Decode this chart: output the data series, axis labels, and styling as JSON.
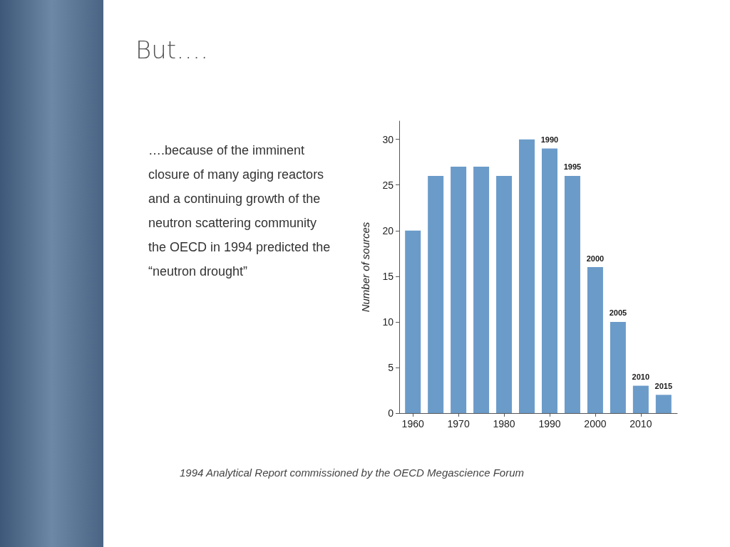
{
  "chart_data": {
    "type": "bar",
    "title": "But….",
    "ylabel": "Number of sources",
    "x": [
      1960,
      1965,
      1970,
      1975,
      1980,
      1985,
      1990,
      1995,
      2000,
      2005,
      2010,
      2015
    ],
    "values": [
      20,
      26,
      27,
      27,
      26,
      30,
      29,
      26,
      16,
      10,
      3,
      2
    ],
    "color": "#6b9bc9",
    "xlim": [
      1957,
      2018
    ],
    "xticks": [
      1960,
      1970,
      1980,
      1990,
      2000,
      2010
    ],
    "ylim": [
      0,
      32
    ],
    "yticks": [
      0,
      5,
      10,
      15,
      20,
      25,
      30
    ],
    "grid": false,
    "annotations": [
      "….because of the imminent closure of many aging reactors and a continuing growth of the neutron scattering community the OECD in 1994  predicted  the “neutron drought”",
      "1994 Analytical Report commissioned by the OECD Megascience Forum",
      {
        "text": "1990",
        "x": 1990,
        "y": 29
      },
      {
        "text": "1995",
        "x": 1995,
        "y": 26
      },
      {
        "text": "2000",
        "x": 2000,
        "y": 16
      },
      {
        "text": "2005",
        "x": 2005,
        "y": 10
      },
      {
        "text": "2010",
        "x": 2010,
        "y": 3
      },
      {
        "text": "2015",
        "x": 2015,
        "y": 2
      }
    ]
  }
}
